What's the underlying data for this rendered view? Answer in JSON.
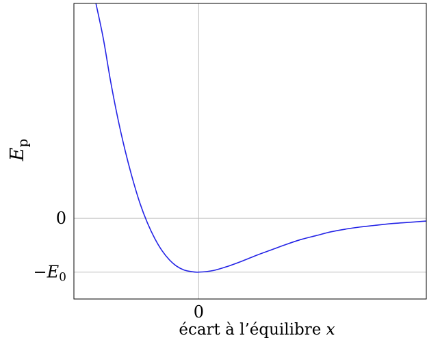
{
  "chart_data": {
    "type": "line",
    "xlabel": "écart à l’équilibre x",
    "ylabel": "Ep",
    "x_ticks": [
      {
        "value": 0,
        "label": "0"
      }
    ],
    "y_ticks": [
      {
        "value": 0,
        "label": "0"
      },
      {
        "value": -1,
        "label": "−E0"
      }
    ],
    "xlim": [
      -1.7,
      3.1
    ],
    "ylim": [
      -1.5,
      4.0
    ],
    "grid": "at ticks only",
    "series": [
      {
        "color": "#2323e6",
        "x": [
          -1.4,
          -1.3,
          -1.2,
          -1.1,
          -1.0,
          -0.9,
          -0.8,
          -0.7,
          -0.6,
          -0.5,
          -0.4,
          -0.3,
          -0.2,
          -0.1,
          0,
          0.2,
          0.4,
          0.6,
          0.8,
          1.0,
          1.2,
          1.4,
          1.6,
          1.8,
          2.0,
          2.2,
          2.4,
          2.6,
          2.8,
          3.1
        ],
        "y": [
          4.0,
          3.35,
          2.55,
          1.85,
          1.25,
          0.73,
          0.28,
          -0.08,
          -0.37,
          -0.6,
          -0.77,
          -0.89,
          -0.96,
          -0.99,
          -1.0,
          -0.97,
          -0.89,
          -0.79,
          -0.68,
          -0.58,
          -0.48,
          -0.39,
          -0.32,
          -0.25,
          -0.2,
          -0.16,
          -0.13,
          -0.1,
          -0.08,
          -0.05
        ]
      }
    ]
  }
}
